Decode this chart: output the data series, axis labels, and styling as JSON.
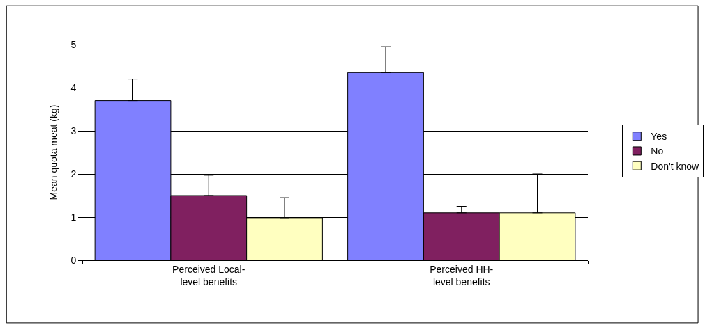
{
  "chart_data": {
    "type": "bar",
    "ylabel": "Mean quota meat (kg)",
    "categories": [
      "Perceived Local-\nlevel benefits",
      "Perceived HH-\nlevel benefits"
    ],
    "series": [
      {
        "name": "Yes",
        "color": "#8080ff",
        "values": [
          3.7,
          4.35
        ],
        "errors": [
          [
            3.7,
            4.2
          ],
          [
            4.35,
            4.95
          ]
        ]
      },
      {
        "name": "No",
        "color": "#802060",
        "values": [
          1.5,
          1.1
        ],
        "errors": [
          [
            1.5,
            1.97
          ],
          [
            1.1,
            1.25
          ]
        ]
      },
      {
        "name": "Don't know",
        "color": "#ffffc0",
        "values": [
          0.97,
          1.1
        ],
        "errors": [
          [
            0.97,
            1.45
          ],
          [
            1.1,
            2.0
          ]
        ]
      }
    ],
    "ylim": [
      0,
      5
    ],
    "yticks": [
      0,
      1,
      2,
      3,
      4,
      5
    ],
    "grid": "y",
    "legend": "right"
  }
}
